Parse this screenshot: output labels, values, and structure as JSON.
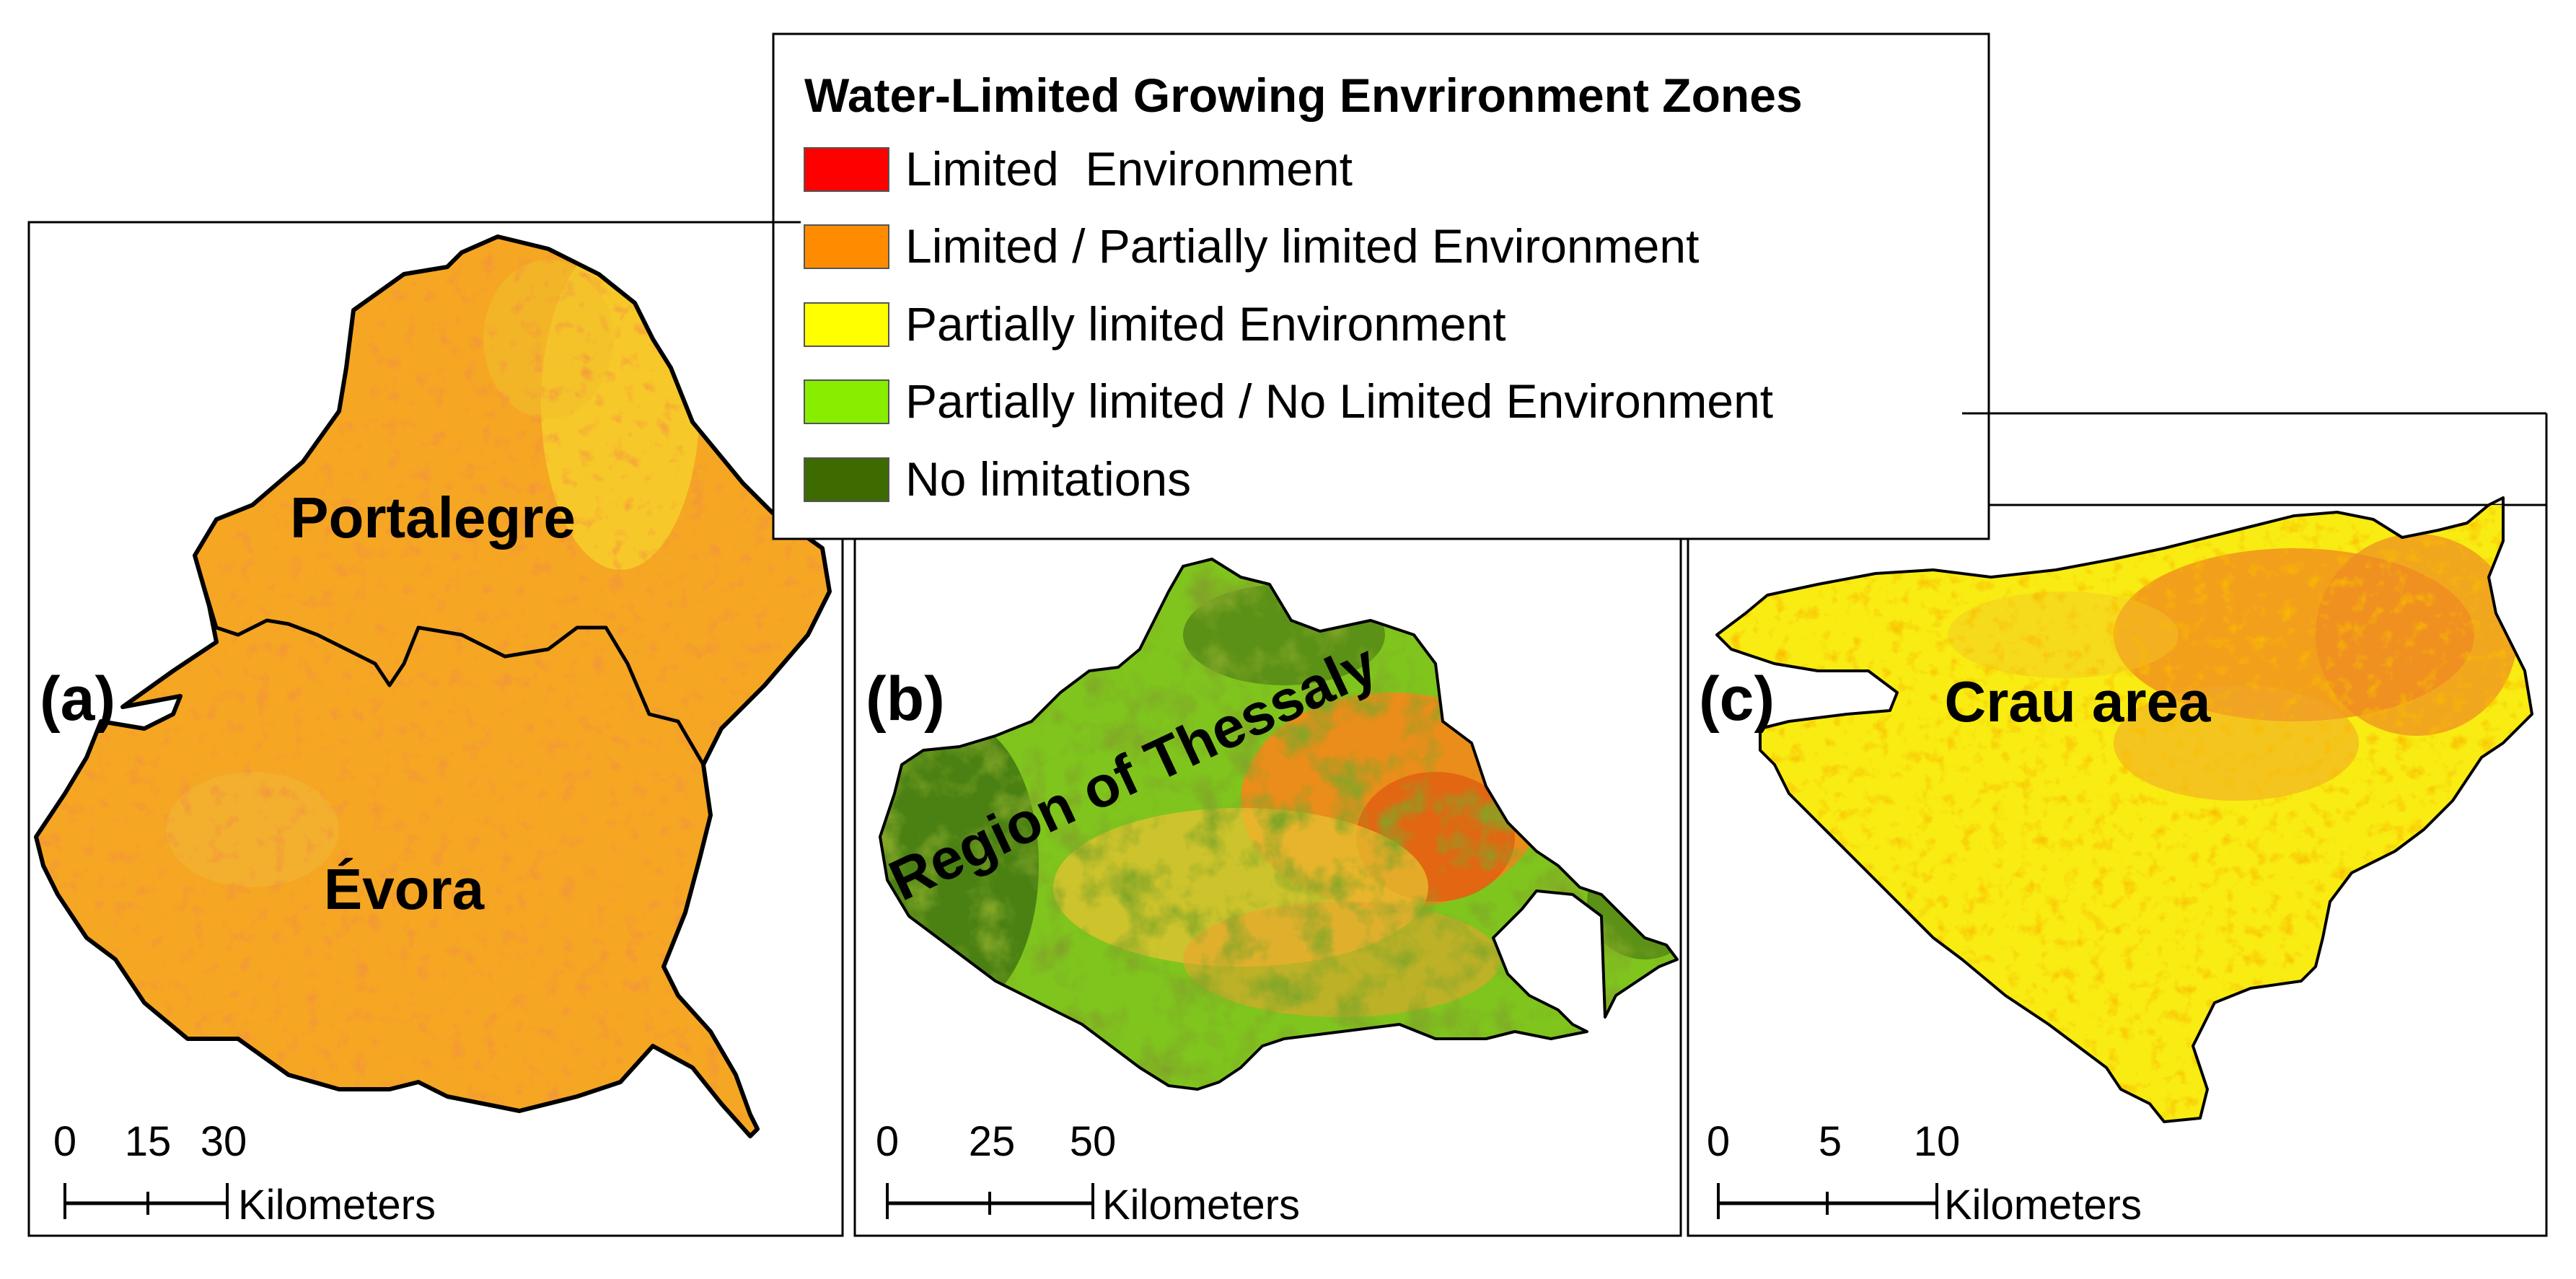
{
  "legend": {
    "title": "Water-Limited Growing Envrironment Zones",
    "items": [
      {
        "label": "Limited  Environment",
        "color": "#ff0000"
      },
      {
        "label": "Limited / Partially limited Environment",
        "color": "#ff8c00"
      },
      {
        "label": "Partially limited Environment",
        "color": "#ffff00"
      },
      {
        "label": "Partially limited / No Limited Environment",
        "color": "#88ee00"
      },
      {
        "label": "No limitations",
        "color": "#3d6b00"
      }
    ]
  },
  "panels": [
    {
      "id": "a",
      "panel_label": "(a)",
      "regions": [
        "Portalegre",
        "Évora"
      ],
      "scale": {
        "ticks": [
          "0",
          "15",
          "30"
        ],
        "unit": "Kilometers"
      }
    },
    {
      "id": "b",
      "panel_label": "(b)",
      "regions": [
        "Region of Thessaly"
      ],
      "scale": {
        "ticks": [
          "0",
          "25",
          "50"
        ],
        "unit": "Kilometers"
      }
    },
    {
      "id": "c",
      "panel_label": "(c)",
      "regions": [
        "Crau area"
      ],
      "scale": {
        "ticks": [
          "0",
          "5",
          "10"
        ],
        "unit": "Kilometers"
      }
    }
  ]
}
